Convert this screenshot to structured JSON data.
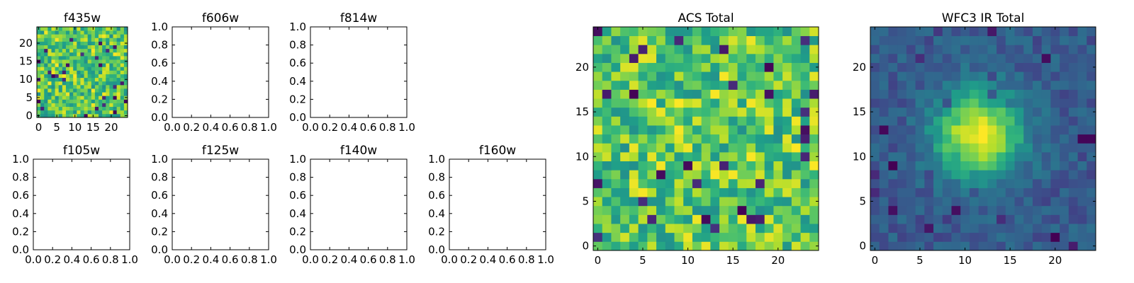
{
  "colors": {
    "text": "#000000",
    "frame": "#000000",
    "background": "#ffffff",
    "colormap": "viridis"
  },
  "chart_data": [
    {
      "type": "heatmap",
      "title": "f435w",
      "grid_size": 25,
      "pattern": "noise",
      "xticks": [
        "0",
        "5",
        "10",
        "15",
        "20"
      ],
      "yticks": [
        "0",
        "5",
        "10",
        "15",
        "20"
      ],
      "xlim": [
        -0.5,
        24.5
      ],
      "ylim": [
        -0.5,
        24.5
      ]
    },
    {
      "type": "empty",
      "title": "f606w",
      "xticks": [
        "0.0",
        "0.2",
        "0.4",
        "0.6",
        "0.8",
        "1.0"
      ],
      "yticks": [
        "0.0",
        "0.2",
        "0.4",
        "0.6",
        "0.8",
        "1.0"
      ],
      "xlim": [
        0,
        1
      ],
      "ylim": [
        0,
        1
      ]
    },
    {
      "type": "empty",
      "title": "f814w",
      "xticks": [
        "0.0",
        "0.2",
        "0.4",
        "0.6",
        "0.8",
        "1.0"
      ],
      "yticks": [
        "0.0",
        "0.2",
        "0.4",
        "0.6",
        "0.8",
        "1.0"
      ],
      "xlim": [
        0,
        1
      ],
      "ylim": [
        0,
        1
      ]
    },
    {
      "type": "empty",
      "title": "f105w",
      "xticks": [
        "0.0",
        "0.2",
        "0.4",
        "0.6",
        "0.8",
        "1.0"
      ],
      "yticks": [
        "0.0",
        "0.2",
        "0.4",
        "0.6",
        "0.8",
        "1.0"
      ],
      "xlim": [
        0,
        1
      ],
      "ylim": [
        0,
        1
      ]
    },
    {
      "type": "empty",
      "title": "f125w",
      "xticks": [
        "0.0",
        "0.2",
        "0.4",
        "0.6",
        "0.8",
        "1.0"
      ],
      "yticks": [
        "0.0",
        "0.2",
        "0.4",
        "0.6",
        "0.8",
        "1.0"
      ],
      "xlim": [
        0,
        1
      ],
      "ylim": [
        0,
        1
      ]
    },
    {
      "type": "empty",
      "title": "f140w",
      "xticks": [
        "0.0",
        "0.2",
        "0.4",
        "0.6",
        "0.8",
        "1.0"
      ],
      "yticks": [
        "0.0",
        "0.2",
        "0.4",
        "0.6",
        "0.8",
        "1.0"
      ],
      "xlim": [
        0,
        1
      ],
      "ylim": [
        0,
        1
      ]
    },
    {
      "type": "empty",
      "title": "f160w",
      "xticks": [
        "0.0",
        "0.2",
        "0.4",
        "0.6",
        "0.8",
        "1.0"
      ],
      "yticks": [
        "0.0",
        "0.2",
        "0.4",
        "0.6",
        "0.8",
        "1.0"
      ],
      "xlim": [
        0,
        1
      ],
      "ylim": [
        0,
        1
      ]
    },
    {
      "type": "heatmap",
      "title": "ACS Total",
      "grid_size": 25,
      "pattern": "noise",
      "xticks": [
        "0",
        "5",
        "10",
        "15",
        "20"
      ],
      "yticks": [
        "0",
        "5",
        "10",
        "15",
        "20"
      ],
      "xlim": [
        -0.5,
        24.5
      ],
      "ylim": [
        -0.5,
        24.5
      ]
    },
    {
      "type": "heatmap",
      "title": "WFC3 IR Total",
      "grid_size": 25,
      "pattern": "gaussian_source",
      "source_center": [
        11.5,
        12.5
      ],
      "xticks": [
        "0",
        "5",
        "10",
        "15",
        "20"
      ],
      "yticks": [
        "0",
        "5",
        "10",
        "15",
        "20"
      ],
      "xlim": [
        -0.5,
        24.5
      ],
      "ylim": [
        -0.5,
        24.5
      ]
    }
  ]
}
